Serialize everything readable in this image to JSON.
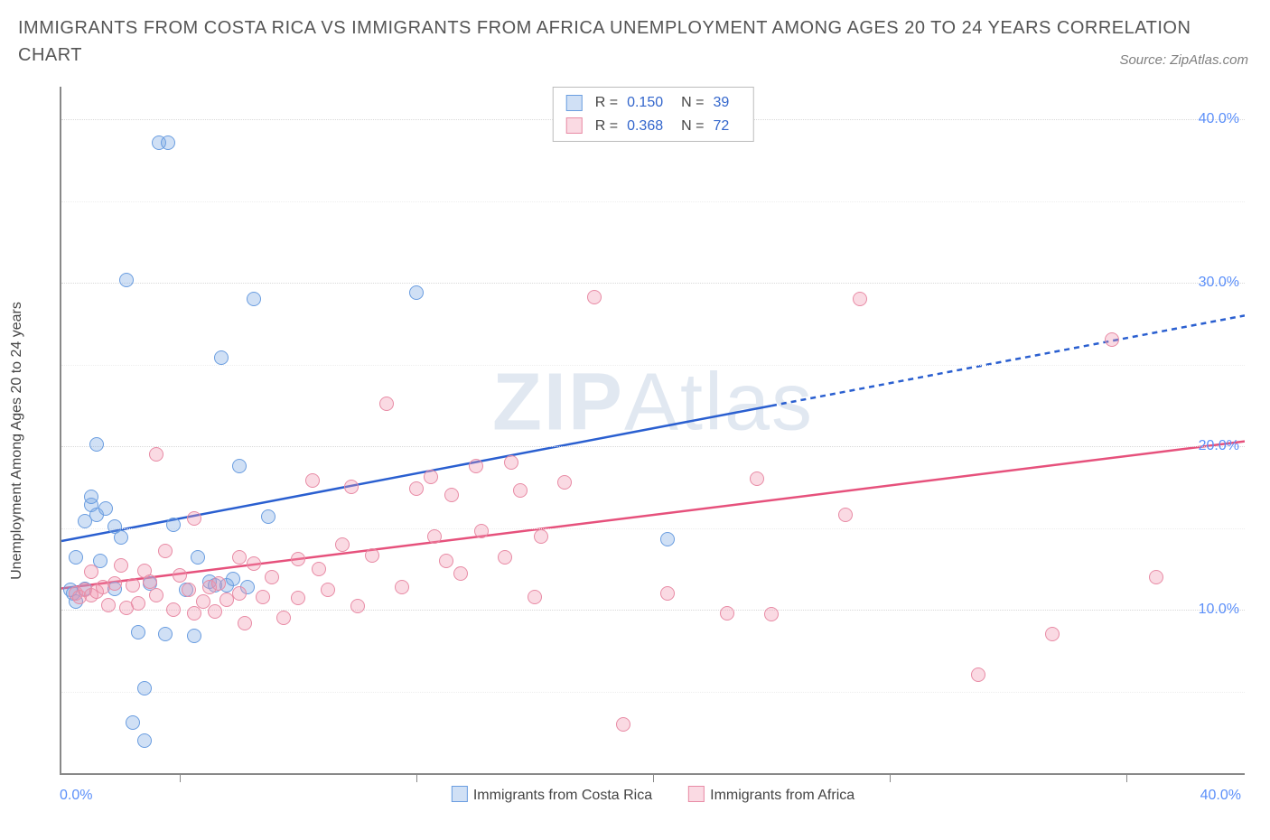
{
  "title": "IMMIGRANTS FROM COSTA RICA VS IMMIGRANTS FROM AFRICA UNEMPLOYMENT AMONG AGES 20 TO 24 YEARS CORRELATION CHART",
  "source": "Source: ZipAtlas.com",
  "watermark_bold": "ZIP",
  "watermark_rest": "Atlas",
  "chart": {
    "type": "scatter",
    "ylabel": "Unemployment Among Ages 20 to 24 years",
    "xlim": [
      0,
      40
    ],
    "ylim": [
      0,
      42
    ],
    "ytick_labels": [
      "10.0%",
      "20.0%",
      "30.0%",
      "40.0%"
    ],
    "ytick_values": [
      10,
      20,
      30,
      40
    ],
    "xtick_values": [
      4,
      12,
      20,
      28,
      36
    ],
    "xaxis_left_label": "0.0%",
    "xaxis_right_label": "40.0%",
    "grid_color": "#d8d8d8",
    "background_color": "#ffffff",
    "series": [
      {
        "name": "Immigrants from Costa Rica",
        "color_fill": "rgba(120,165,225,0.35)",
        "color_stroke": "#6a9de0",
        "trend_color": "#2a5fd0",
        "trend_width": 2.5,
        "trend_y0": 14.2,
        "trend_slope": 0.345,
        "solid_xmax": 24,
        "R": "0.150",
        "N": "39",
        "points": [
          [
            0.3,
            11.2
          ],
          [
            0.4,
            11.0
          ],
          [
            0.5,
            10.5
          ],
          [
            0.5,
            13.2
          ],
          [
            0.8,
            11.3
          ],
          [
            0.8,
            15.4
          ],
          [
            1.0,
            16.4
          ],
          [
            1.0,
            16.9
          ],
          [
            1.2,
            20.1
          ],
          [
            1.2,
            15.8
          ],
          [
            1.3,
            13.0
          ],
          [
            1.5,
            16.2
          ],
          [
            1.8,
            15.1
          ],
          [
            1.8,
            11.3
          ],
          [
            2.0,
            14.4
          ],
          [
            2.2,
            30.2
          ],
          [
            2.4,
            3.1
          ],
          [
            2.6,
            8.6
          ],
          [
            2.8,
            2.0
          ],
          [
            2.8,
            5.2
          ],
          [
            3.0,
            11.6
          ],
          [
            3.3,
            38.6
          ],
          [
            3.6,
            38.6
          ],
          [
            3.5,
            8.5
          ],
          [
            3.8,
            15.2
          ],
          [
            4.2,
            11.2
          ],
          [
            4.5,
            8.4
          ],
          [
            4.6,
            13.2
          ],
          [
            5.0,
            11.7
          ],
          [
            5.2,
            11.5
          ],
          [
            5.4,
            25.4
          ],
          [
            5.6,
            11.5
          ],
          [
            5.8,
            11.9
          ],
          [
            6.0,
            18.8
          ],
          [
            6.3,
            11.4
          ],
          [
            6.5,
            29.0
          ],
          [
            7.0,
            15.7
          ],
          [
            12.0,
            29.4
          ],
          [
            20.5,
            14.3
          ]
        ]
      },
      {
        "name": "Immigrants from Africa",
        "color_fill": "rgba(240,150,175,0.35)",
        "color_stroke": "#e88ba5",
        "trend_color": "#e6517c",
        "trend_width": 2.5,
        "trend_y0": 11.3,
        "trend_slope": 0.225,
        "solid_xmax": 40,
        "R": "0.368",
        "N": "72",
        "points": [
          [
            0.5,
            11.0
          ],
          [
            0.6,
            10.8
          ],
          [
            0.8,
            11.2
          ],
          [
            1.0,
            10.9
          ],
          [
            1.0,
            12.3
          ],
          [
            1.2,
            11.1
          ],
          [
            1.4,
            11.4
          ],
          [
            1.6,
            10.3
          ],
          [
            1.8,
            11.6
          ],
          [
            2.0,
            12.7
          ],
          [
            2.2,
            10.1
          ],
          [
            2.4,
            11.5
          ],
          [
            2.6,
            10.4
          ],
          [
            2.8,
            12.4
          ],
          [
            3.0,
            11.7
          ],
          [
            3.2,
            10.9
          ],
          [
            3.2,
            19.5
          ],
          [
            3.5,
            13.6
          ],
          [
            3.8,
            10.0
          ],
          [
            4.0,
            12.1
          ],
          [
            4.3,
            11.2
          ],
          [
            4.5,
            9.8
          ],
          [
            4.5,
            15.6
          ],
          [
            4.8,
            10.5
          ],
          [
            5.0,
            11.4
          ],
          [
            5.2,
            9.9
          ],
          [
            5.3,
            11.6
          ],
          [
            5.6,
            10.6
          ],
          [
            6.0,
            11.0
          ],
          [
            6.0,
            13.2
          ],
          [
            6.2,
            9.2
          ],
          [
            6.5,
            12.8
          ],
          [
            6.8,
            10.8
          ],
          [
            7.1,
            12.0
          ],
          [
            7.5,
            9.5
          ],
          [
            8.0,
            10.7
          ],
          [
            8.0,
            13.1
          ],
          [
            8.5,
            17.9
          ],
          [
            8.7,
            12.5
          ],
          [
            9.0,
            11.2
          ],
          [
            9.5,
            14.0
          ],
          [
            9.8,
            17.5
          ],
          [
            10.0,
            10.2
          ],
          [
            10.5,
            13.3
          ],
          [
            11.0,
            22.6
          ],
          [
            11.5,
            11.4
          ],
          [
            12.0,
            17.4
          ],
          [
            12.5,
            18.1
          ],
          [
            12.6,
            14.5
          ],
          [
            13.0,
            13.0
          ],
          [
            13.2,
            17.0
          ],
          [
            13.5,
            12.2
          ],
          [
            14.0,
            18.8
          ],
          [
            14.2,
            14.8
          ],
          [
            15.0,
            13.2
          ],
          [
            15.2,
            19.0
          ],
          [
            15.5,
            17.3
          ],
          [
            16.0,
            10.8
          ],
          [
            16.2,
            14.5
          ],
          [
            17.0,
            17.8
          ],
          [
            18.0,
            29.1
          ],
          [
            19.0,
            3.0
          ],
          [
            20.5,
            11.0
          ],
          [
            22.5,
            9.8
          ],
          [
            23.5,
            18.0
          ],
          [
            24.0,
            9.7
          ],
          [
            26.5,
            15.8
          ],
          [
            27.0,
            29.0
          ],
          [
            31.0,
            6.0
          ],
          [
            33.5,
            8.5
          ],
          [
            35.5,
            26.5
          ],
          [
            37.0,
            12.0
          ]
        ]
      }
    ],
    "legend_top": {
      "R_label": "R =",
      "N_label": "N ="
    },
    "marker_radius": 8,
    "marker_stroke_width": 1.2,
    "title_fontsize": 20,
    "label_fontsize": 16
  }
}
